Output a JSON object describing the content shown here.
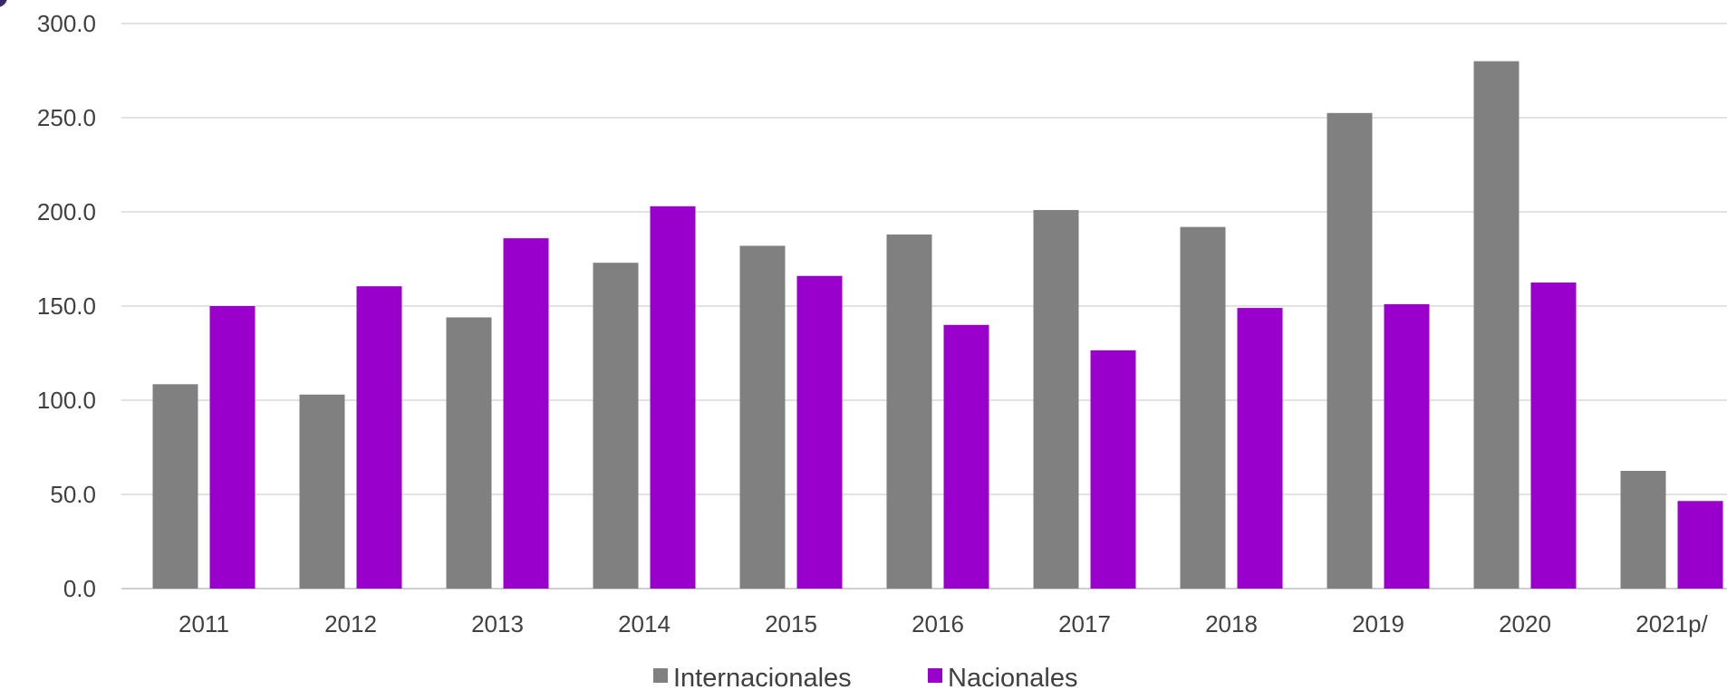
{
  "chart_data": {
    "type": "bar",
    "title": "",
    "xlabel": "",
    "ylabel": "",
    "categories": [
      "2011",
      "2012",
      "2013",
      "2014",
      "2015",
      "2016",
      "2017",
      "2018",
      "2019",
      "2020",
      "2021p/"
    ],
    "series": [
      {
        "name": "Internacionales",
        "color": "#808080",
        "values": [
          108.5,
          103.0,
          144.0,
          173.0,
          182.0,
          188.0,
          201.0,
          192.0,
          252.5,
          280.0,
          62.5
        ]
      },
      {
        "name": "Nacionales",
        "color": "#9900cc",
        "values": [
          150.0,
          160.5,
          186.0,
          203.0,
          166.0,
          140.0,
          126.5,
          149.0,
          151.0,
          162.5,
          46.5
        ]
      }
    ],
    "ylim": [
      0,
      300
    ],
    "yticks": [
      "0.0",
      "50.0",
      "100.0",
      "150.0",
      "200.0",
      "250.0",
      "300.0"
    ],
    "grid": true,
    "legend_position": "bottom"
  }
}
